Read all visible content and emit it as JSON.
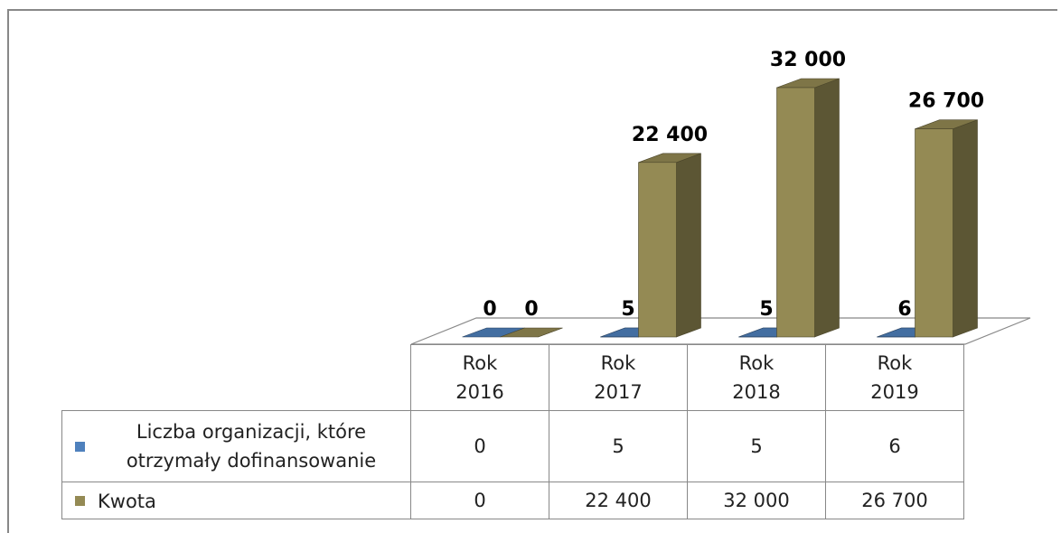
{
  "chart_data": {
    "type": "bar3d",
    "categories": [
      "Rok 2016",
      "Rok 2017",
      "Rok 2018",
      "Rok 2019"
    ],
    "series": [
      {
        "name": "Liczba organizacji, które otrzymały dofinansowanie",
        "color": "#4f81bd",
        "values": [
          0,
          5,
          5,
          6
        ]
      },
      {
        "name": "Kwota",
        "color": "#948a54",
        "values": [
          0,
          22400,
          32000,
          26700
        ],
        "value_labels": [
          "0",
          "22 400",
          "32 000",
          "26 700"
        ]
      }
    ]
  }
}
